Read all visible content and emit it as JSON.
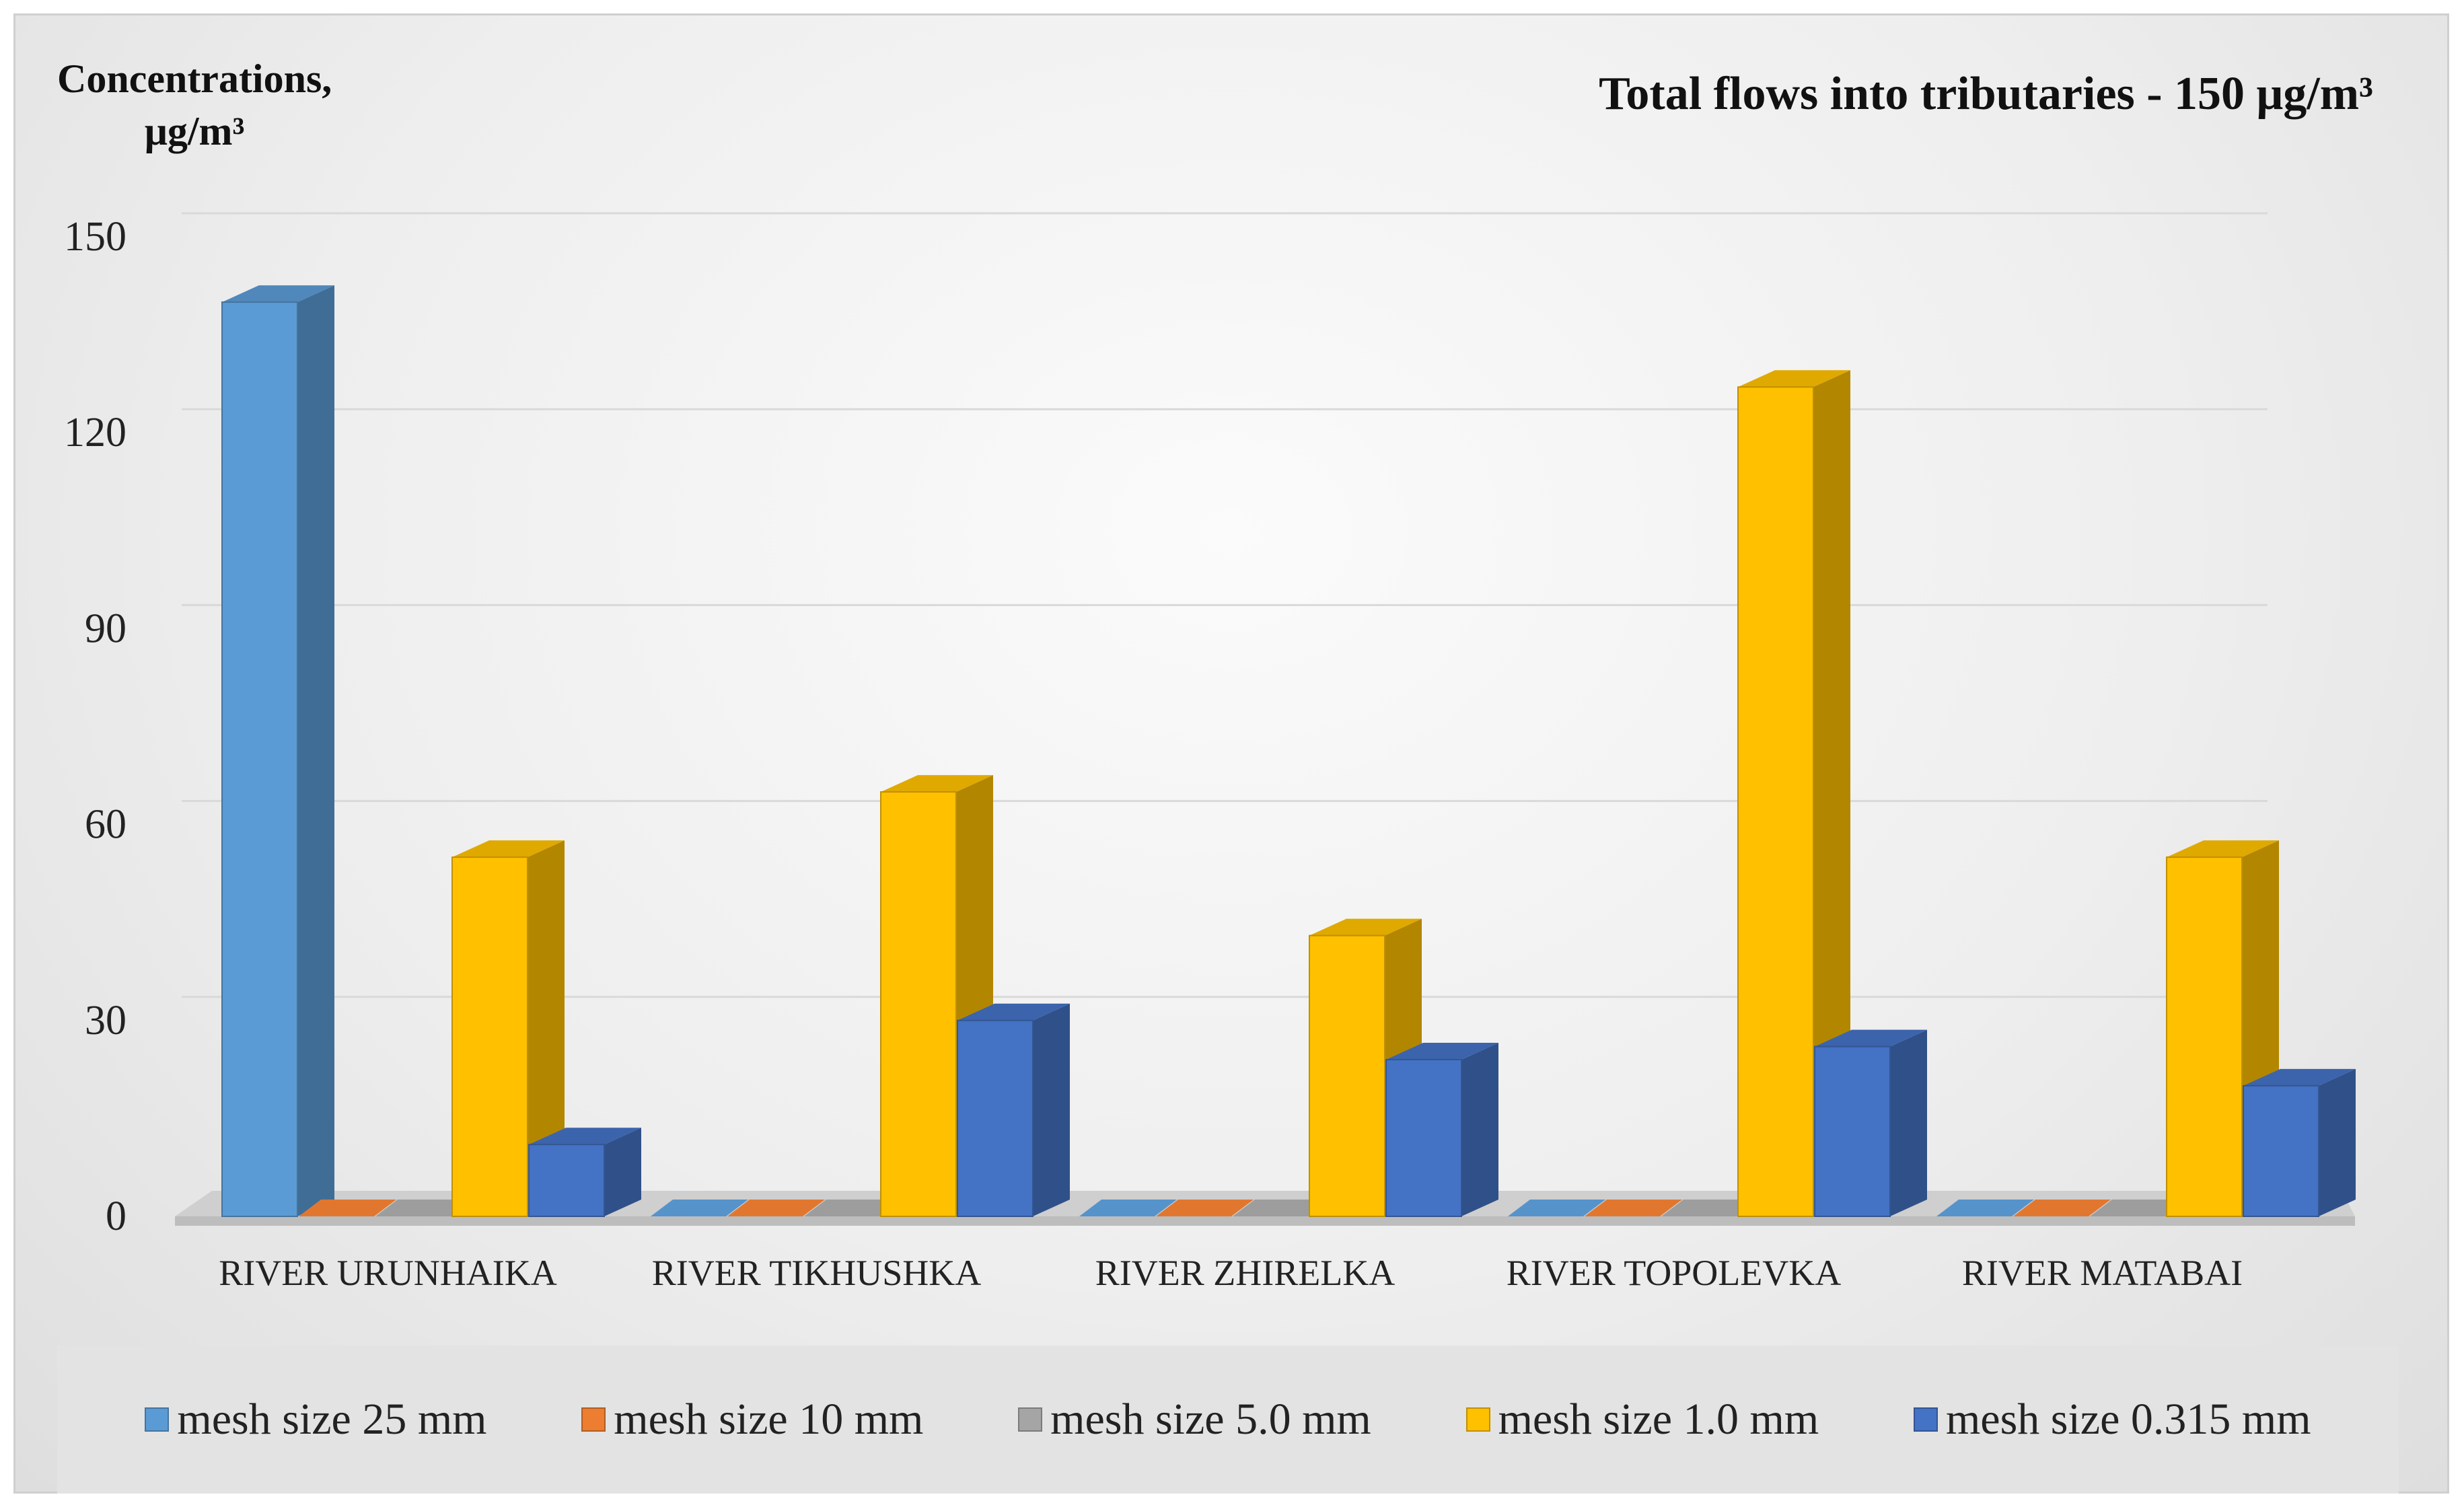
{
  "chart_data": {
    "type": "bar",
    "title": "Total flows into tributaries - 150 μg/m³",
    "ylabel_line1": "Concentrations,",
    "ylabel_line2": "μg/m³",
    "categories": [
      "RIVER URUNHAIKA",
      "RIVER TIKHUSHKA",
      "RIVER ZHIRELKA",
      "RIVER TOPOLEVKA",
      "RIVER MATABAI"
    ],
    "series": [
      {
        "name": "mesh size 25 mm",
        "color": "#5b9bd5",
        "values": [
          140,
          0,
          0,
          0,
          0
        ]
      },
      {
        "name": "mesh size 10 mm",
        "color": "#ed7d31",
        "values": [
          0,
          0,
          0,
          0,
          0
        ]
      },
      {
        "name": "mesh size 5.0 mm",
        "color": "#a5a5a5",
        "values": [
          0,
          0,
          0,
          0,
          0
        ]
      },
      {
        "name": "mesh size 1.0 mm",
        "color": "#ffc000",
        "values": [
          55,
          65,
          43,
          127,
          55
        ]
      },
      {
        "name": "mesh size 0.315 mm",
        "color": "#4472c4",
        "values": [
          11,
          30,
          24,
          26,
          20
        ]
      }
    ],
    "yticks": [
      "0",
      "30",
      "60",
      "90",
      "120",
      "150"
    ],
    "ylim": [
      0,
      150
    ],
    "grid": true,
    "legend_position": "bottom",
    "style": "3d-columns"
  }
}
